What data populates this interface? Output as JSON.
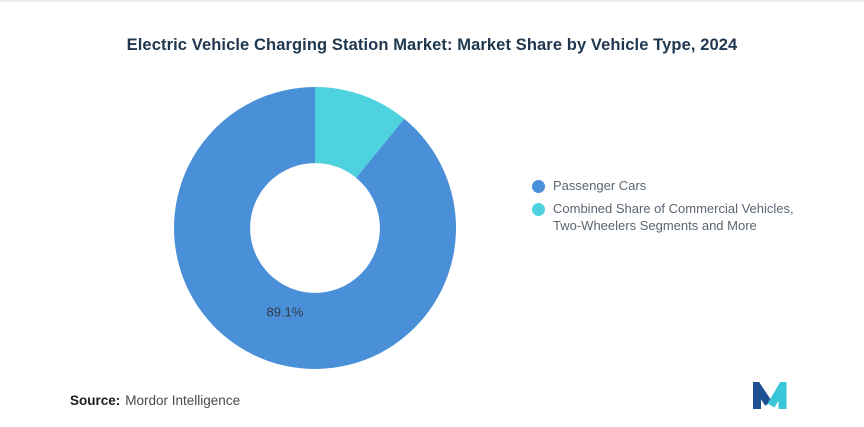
{
  "title": "Electric Vehicle Charging Station Market: Market Share by Vehicle Type, 2024",
  "chart_data": {
    "type": "pie",
    "subtype": "donut",
    "title": "Electric Vehicle Charging Station Market: Market Share by Vehicle Type, 2024",
    "segments": [
      {
        "label": "Passenger Cars",
        "value": 89.1,
        "display_label": "89.1%",
        "color": "#4A90D9"
      },
      {
        "label": "Combined Share of Commercial Vehicles, Two-Wheelers Segments and More",
        "value": 10.9,
        "display_label": "",
        "color": "#4DD2DE"
      }
    ],
    "start_angle": 39.24,
    "inner_radius_ratio": 0.46,
    "legend_position": "right",
    "value_unit": "%",
    "grid": false
  },
  "legend": {
    "items": [
      {
        "label": "Passenger Cars",
        "color": "#4A90D9"
      },
      {
        "label": "Combined Share of Commercial Vehicles, Two-Wheelers Segments and More",
        "color": "#4DD2DE"
      }
    ]
  },
  "footer": {
    "source_label": "Source:",
    "source_value": "Mordor Intelligence"
  },
  "icons": {
    "brand_logo": "mordor-intelligence-m-logo"
  },
  "colors": {
    "title": "#20384F",
    "legend_text": "#5A6673",
    "slice_label": "#333B44",
    "source_label": "#1C1C1C",
    "source_value": "#4A4A4A",
    "logo_navy": "#1D4F91",
    "logo_teal": "#38C6D9"
  }
}
